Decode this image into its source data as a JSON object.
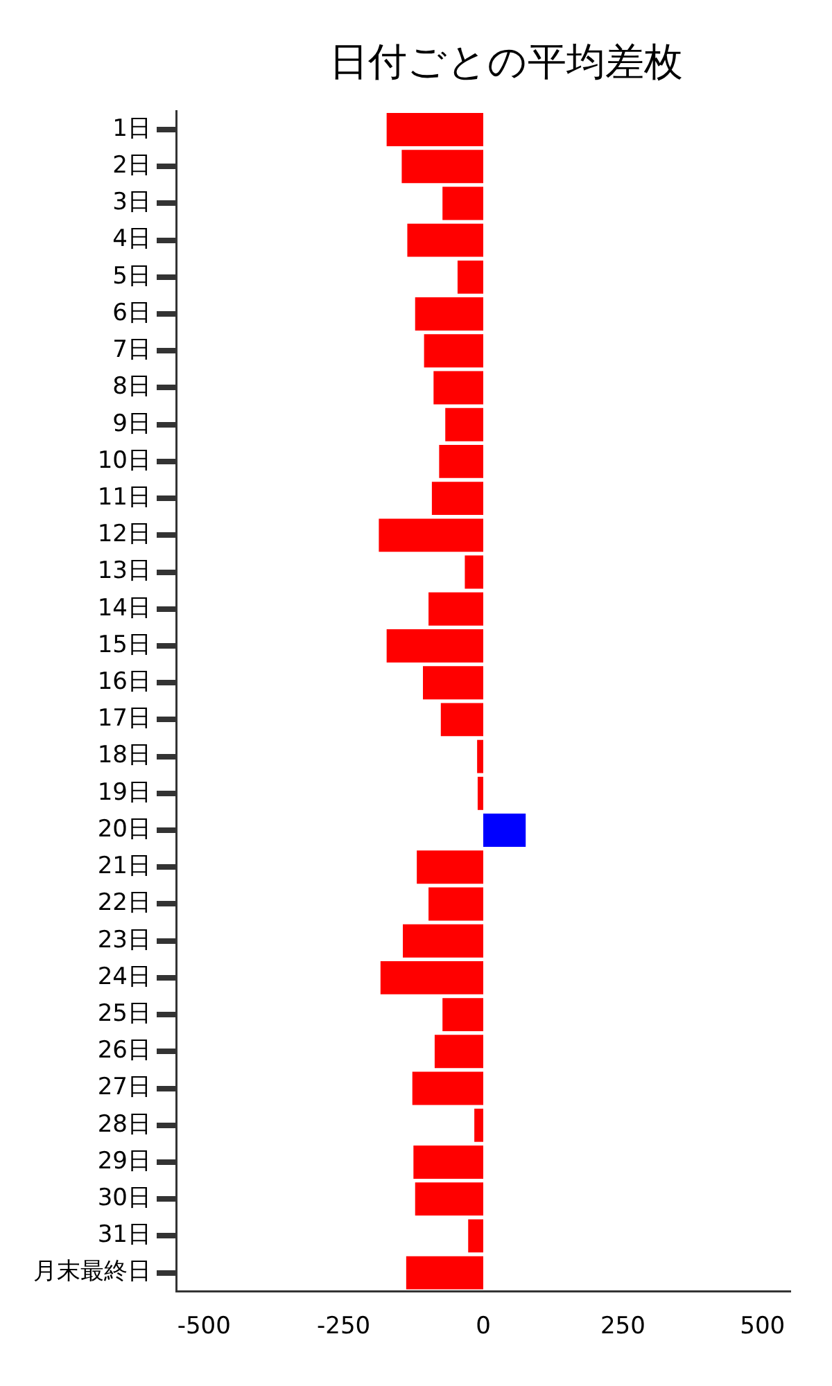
{
  "chart_data": {
    "type": "bar",
    "orientation": "horizontal",
    "title": "日付ごとの平均差枚",
    "categories": [
      "1日",
      "2日",
      "3日",
      "4日",
      "5日",
      "6日",
      "7日",
      "8日",
      "9日",
      "10日",
      "11日",
      "12日",
      "13日",
      "14日",
      "15日",
      "16日",
      "17日",
      "18日",
      "19日",
      "20日",
      "21日",
      "22日",
      "23日",
      "24日",
      "25日",
      "26日",
      "27日",
      "28日",
      "29日",
      "30日",
      "31日",
      "月末最終日"
    ],
    "values": [
      -173,
      -146,
      -73,
      -136,
      -46,
      -122,
      -106,
      -89,
      -68,
      -79,
      -92,
      -187,
      -33,
      -98,
      -173,
      -108,
      -76,
      -11,
      -10,
      76,
      -119,
      -98,
      -144,
      -184,
      -73,
      -87,
      -127,
      -16,
      -125,
      -122,
      -27,
      -138
    ],
    "colors": [
      "#ff0000",
      "#ff0000",
      "#ff0000",
      "#ff0000",
      "#ff0000",
      "#ff0000",
      "#ff0000",
      "#ff0000",
      "#ff0000",
      "#ff0000",
      "#ff0000",
      "#ff0000",
      "#ff0000",
      "#ff0000",
      "#ff0000",
      "#ff0000",
      "#ff0000",
      "#ff0000",
      "#ff0000",
      "#0000ff",
      "#ff0000",
      "#ff0000",
      "#ff0000",
      "#ff0000",
      "#ff0000",
      "#ff0000",
      "#ff0000",
      "#ff0000",
      "#ff0000",
      "#ff0000",
      "#ff0000",
      "#ff0000"
    ],
    "xlim": [
      -550,
      550
    ],
    "xticks": [
      -500,
      -250,
      0,
      250,
      500
    ],
    "grid": false,
    "legend": false
  }
}
